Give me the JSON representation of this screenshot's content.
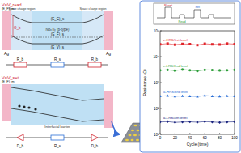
{
  "diagram": {
    "top": {
      "voltage": "V=V_read",
      "metal_left": "Ag",
      "metal_right": "Ag",
      "levels": [
        "(E_F)_m",
        "(E_C)_s",
        "(E_F)_s",
        "(E_V)_s"
      ],
      "barrier": "Φ_b",
      "semiconductor": "NbₓTiᵧ (p-type)",
      "region_left": "Space charge region",
      "region_right": "Space charge region",
      "circuit": [
        "R_b",
        "R_s",
        "R_b"
      ]
    },
    "bottom": {
      "voltage": "V=V_set",
      "level": "(E_F)_m",
      "barrier_label": "Interfacial barrier",
      "circuit": [
        "D_b",
        "R_s",
        "D_b"
      ]
    },
    "pulse": {
      "labels": [
        "Reset",
        "Read",
        "Set"
      ]
    }
  },
  "chart_data": {
    "type": "line",
    "x_label": "Cycle (time)",
    "y_label": "Resistance (Ω)",
    "log": "y",
    "xlim": [
      0,
      100
    ],
    "xticks": [
      0,
      20,
      40,
      60,
      80,
      100
    ],
    "ylim": [
      10,
      100000
    ],
    "yticks": [
      {
        "value": 10,
        "label": "10¹"
      },
      {
        "value": 100,
        "label": "10²"
      },
      {
        "value": 1000,
        "label": "10³"
      },
      {
        "value": 10000,
        "label": "10⁴"
      },
      {
        "value": 100000,
        "label": "10⁵"
      }
    ],
    "x": [
      0,
      10,
      20,
      30,
      40,
      50,
      60,
      70,
      80,
      90,
      100
    ],
    "series": [
      {
        "name": "c-HRS/1st level",
        "color": "#e0242a",
        "marker": "square",
        "values": [
          30000,
          32000,
          29000,
          31000,
          30500,
          28000,
          31500,
          30000,
          29500,
          32000,
          30500
        ]
      },
      {
        "name": "c-LRS/2nd level",
        "color": "#2e9e3a",
        "marker": "circle",
        "values": [
          3000,
          3100,
          2900,
          3200,
          3000,
          2800,
          3100,
          3050,
          2950,
          3000,
          3100
        ]
      },
      {
        "name": "a-HRS/3rd level",
        "color": "#2b6fd6",
        "marker": "triangle",
        "values": [
          300,
          310,
          295,
          305,
          300,
          290,
          315,
          300,
          298,
          305,
          300
        ]
      },
      {
        "name": "a-LRS/4th level",
        "color": "#1a237e",
        "marker": "diamond",
        "values": [
          30,
          31,
          29,
          30,
          30.5,
          29.5,
          31,
          30,
          29,
          30,
          30.5
        ]
      }
    ]
  }
}
